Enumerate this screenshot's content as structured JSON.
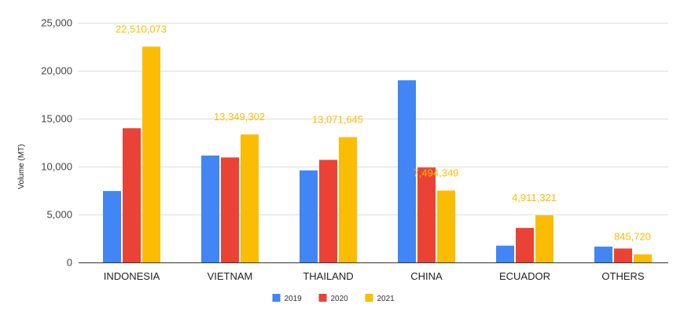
{
  "chart_data": {
    "type": "bar",
    "title": "",
    "xlabel": "",
    "ylabel": "Volume (MT)",
    "categories": [
      "INDONESIA",
      "VIETNAM",
      "THAILAND",
      "CHINA",
      "ECUADOR",
      "OTHERS"
    ],
    "series": [
      {
        "name": "2019",
        "color": "#4285f4",
        "values": [
          7450,
          11150,
          9600,
          19000,
          1750,
          1650
        ]
      },
      {
        "name": "2020",
        "color": "#ea4335",
        "values": [
          14000,
          10950,
          10700,
          9900,
          3600,
          1450
        ]
      },
      {
        "name": "2021",
        "color": "#fbbc04",
        "values": [
          22510,
          13349,
          13072,
          7494,
          4911,
          846
        ]
      }
    ],
    "data_labels": {
      "series": "2021",
      "color": "#fbbc04",
      "labels": [
        "22,510,073",
        "13,349,302",
        "13,071,645",
        "7,494,349",
        "4,911,321",
        "845,720"
      ]
    },
    "ylim": [
      0,
      25000
    ],
    "yticks": [
      0,
      5000,
      10000,
      15000,
      20000,
      25000
    ],
    "ytick_labels": [
      "0",
      "5,000",
      "10,000",
      "15,000",
      "20,000",
      "25,000"
    ],
    "grid": true,
    "legend_position": "bottom"
  }
}
